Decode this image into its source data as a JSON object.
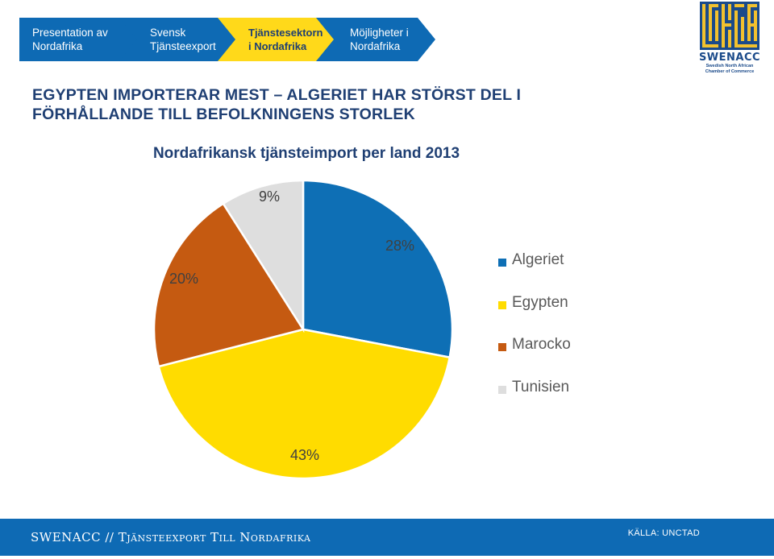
{
  "nav": {
    "items": [
      {
        "label": "Presentation av Nordafrika",
        "active": false
      },
      {
        "label": "Svensk Tjänsteexport",
        "active": false
      },
      {
        "label": "Tjänstesektorn i Nordafrika",
        "active": true
      },
      {
        "label": "Möjligheter i Nordafrika",
        "active": false
      }
    ],
    "colors": {
      "inactive": "#0e6ab4",
      "active": "#ffd91a"
    }
  },
  "logo": {
    "name": "SWENACC",
    "subtitle": "Swedish North African Chamber of Commerce",
    "colors": {
      "blue": "#1a4a8a",
      "gold": "#f2c12e"
    }
  },
  "headline": "EGYPTEN IMPORTERAR MEST – ALGERIET HAR STÖRST DEL I FÖRHÅLLANDE TILL BEFOLKNINGENS STORLEK",
  "chart_data": {
    "type": "pie",
    "title": "Nordafrikansk tjänsteimport per land 2013",
    "categories": [
      "Algeriet",
      "Egypten",
      "Marocko",
      "Tunisien"
    ],
    "values": [
      28,
      43,
      20,
      9
    ],
    "labels": [
      "28%",
      "43%",
      "20%",
      "9%"
    ],
    "colors": [
      "#0e6fb5",
      "#ffdc00",
      "#c55a11",
      "#dedede"
    ],
    "start_angle": "12 o'clock",
    "direction": "clockwise",
    "legend_position": "right"
  },
  "footer": {
    "left": "SWENACC // Tjänsteexport Till Nordafrika",
    "right": "KÄLLA: UNCTAD"
  }
}
